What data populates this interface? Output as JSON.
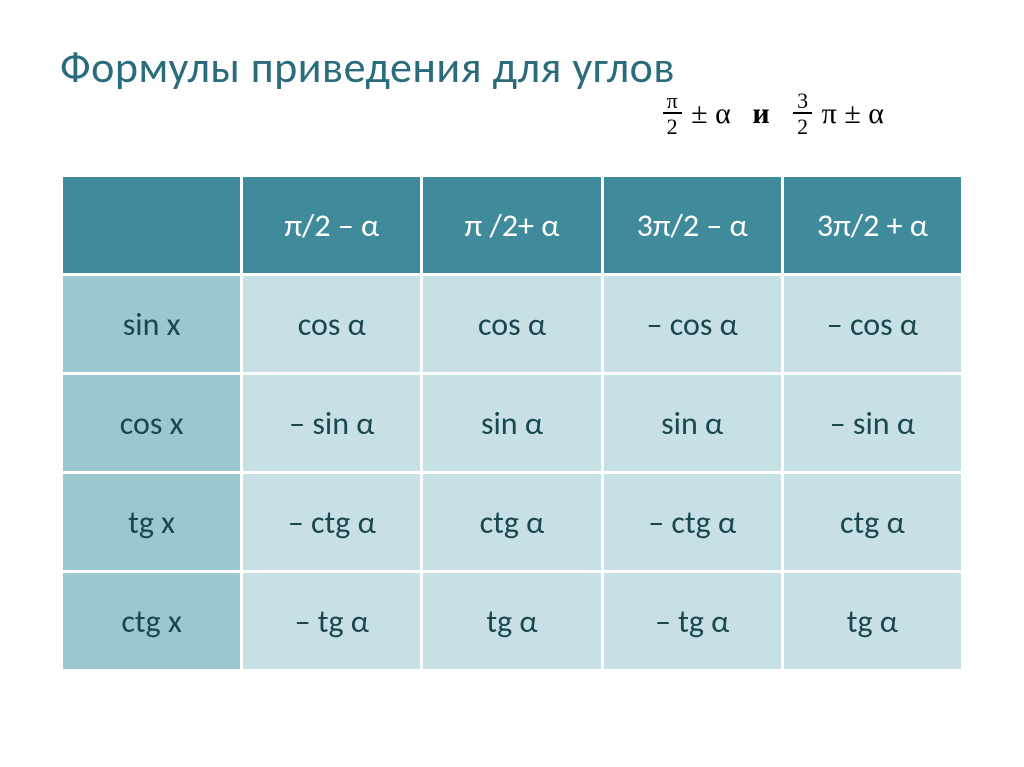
{
  "title": {
    "text": "Формулы приведения для углов",
    "color": "#2a6b7c",
    "fontsize": 44
  },
  "subtitle": {
    "frac1_num": "π",
    "frac1_den": "2",
    "op1": "±",
    "alpha": "α",
    "conj": "и",
    "frac2_num": "3",
    "frac2_den": "2",
    "pi2": "π",
    "op2": "±"
  },
  "table": {
    "type": "table",
    "header_bg": "#3f8a9b",
    "header_fg": "#ffffff",
    "rowlabel_bg": "#9bc7cf",
    "rowlabel_fg": "#1a4650",
    "cell_bg": "#c7e0e5",
    "cell_fg": "#1a4650",
    "border_color": "#ffffff",
    "fontsize": 32,
    "columns": [
      "",
      "π/2 – α",
      "π /2+ α",
      "3π/2 – α",
      "3π/2 + α"
    ],
    "rows": [
      {
        "label": "sin x",
        "cells": [
          "cos α",
          "cos α",
          "– cos α",
          "– cos α"
        ]
      },
      {
        "label": "cos x",
        "cells": [
          "– sin α",
          "sin α",
          "sin α",
          "– sin α"
        ]
      },
      {
        "label": "tg x",
        "cells": [
          "– ctg α",
          "ctg α",
          "– ctg α",
          "ctg α"
        ]
      },
      {
        "label": "ctg x",
        "cells": [
          "– tg α",
          "tg α",
          "– tg α",
          "tg α"
        ]
      }
    ]
  }
}
